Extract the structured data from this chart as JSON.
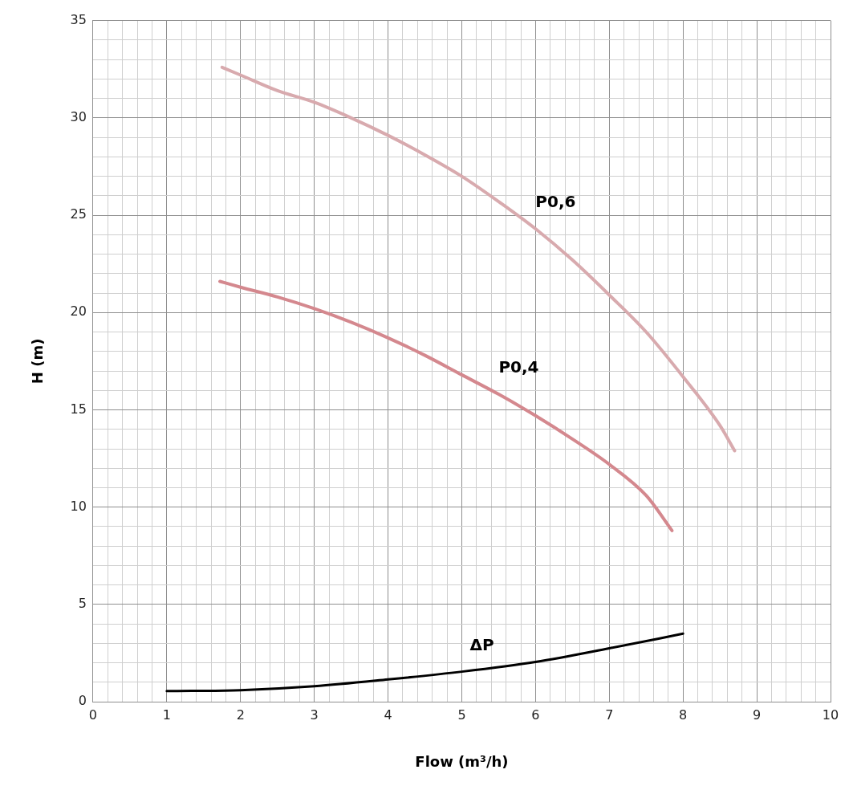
{
  "chart_data": {
    "type": "line",
    "xlabel": "Flow (m³/h)",
    "ylabel": "H (m)",
    "xlim": [
      0,
      10
    ],
    "ylim": [
      0,
      35
    ],
    "xticks": [
      0,
      {
        "value": 0.2,
        "label": null
      },
      {
        "value": 0.4,
        "label": null
      },
      {
        "value": 0.6,
        "label": null
      },
      {
        "value": 0.8,
        "label": null
      },
      1,
      {
        "value": 1.2,
        "label": null
      },
      {
        "value": 1.4,
        "label": null
      },
      {
        "value": 1.6,
        "label": null
      },
      {
        "value": 1.8,
        "label": null
      },
      2,
      {
        "value": 2.2,
        "label": null
      },
      {
        "value": 2.4,
        "label": null
      },
      {
        "value": 2.6,
        "label": null
      },
      {
        "value": 2.8,
        "label": null
      },
      3,
      {
        "value": 3.2,
        "label": null
      },
      {
        "value": 3.4,
        "label": null
      },
      {
        "value": 3.6,
        "label": null
      },
      {
        "value": 3.8,
        "label": null
      },
      4,
      {
        "value": 4.2,
        "label": null
      },
      {
        "value": 4.4,
        "label": null
      },
      {
        "value": 4.6,
        "label": null
      },
      {
        "value": 4.8,
        "label": null
      },
      5,
      {
        "value": 5.2,
        "label": null
      },
      {
        "value": 5.4,
        "label": null
      },
      {
        "value": 5.6,
        "label": null
      },
      {
        "value": 5.8,
        "label": null
      },
      6,
      {
        "value": 6.2,
        "label": null
      },
      {
        "value": 6.4,
        "label": null
      },
      {
        "value": 6.6,
        "label": null
      },
      {
        "value": 6.8,
        "label": null
      },
      7,
      {
        "value": 7.2,
        "label": null
      },
      {
        "value": 7.4,
        "label": null
      },
      {
        "value": 7.6,
        "label": null
      },
      {
        "value": 7.8,
        "label": null
      },
      8,
      {
        "value": 8.2,
        "label": null
      },
      {
        "value": 8.4,
        "label": null
      },
      {
        "value": 8.6,
        "label": null
      },
      {
        "value": 8.8,
        "label": null
      },
      9,
      {
        "value": 9.2,
        "label": null
      },
      {
        "value": 9.4,
        "label": null
      },
      {
        "value": 9.6,
        "label": null
      },
      {
        "value": 9.8,
        "label": null
      },
      10
    ],
    "yticks": [
      0,
      {
        "value": 1,
        "label": null
      },
      {
        "value": 2,
        "label": null
      },
      {
        "value": 3,
        "label": null
      },
      {
        "value": 4,
        "label": null
      },
      5,
      {
        "value": 6,
        "label": null
      },
      {
        "value": 7,
        "label": null
      },
      {
        "value": 8,
        "label": null
      },
      {
        "value": 9,
        "label": null
      },
      10,
      {
        "value": 11,
        "label": null
      },
      {
        "value": 12,
        "label": null
      },
      {
        "value": 13,
        "label": null
      },
      {
        "value": 14,
        "label": null
      },
      15,
      {
        "value": 16,
        "label": null
      },
      {
        "value": 17,
        "label": null
      },
      {
        "value": 18,
        "label": null
      },
      {
        "value": 19,
        "label": null
      },
      20,
      {
        "value": 21,
        "label": null
      },
      {
        "value": 22,
        "label": null
      },
      {
        "value": 23,
        "label": null
      },
      {
        "value": 24,
        "label": null
      },
      25,
      {
        "value": 26,
        "label": null
      },
      {
        "value": 27,
        "label": null
      },
      {
        "value": 28,
        "label": null
      },
      {
        "value": 29,
        "label": null
      },
      30,
      {
        "value": 31,
        "label": null
      },
      {
        "value": 32,
        "label": null
      },
      {
        "value": 33,
        "label": null
      },
      {
        "value": 34,
        "label": null
      },
      35
    ],
    "grid": true,
    "marker": "none",
    "line_style": "solid",
    "series": [
      {
        "name": "P0,6",
        "color": "#d8aaae",
        "x": [
          1.75,
          2,
          2.5,
          3,
          3.5,
          4,
          4.5,
          5,
          5.5,
          6,
          6.5,
          7,
          7.5,
          8,
          8.5,
          8.7
        ],
        "values": [
          32.6,
          32.2,
          31.4,
          30.8,
          30.0,
          29.1,
          28.1,
          27.0,
          25.7,
          24.3,
          22.7,
          20.9,
          19.0,
          16.7,
          14.2,
          12.9
        ]
      },
      {
        "name": "P0,4",
        "color": "#d4888e",
        "x": [
          1.72,
          2,
          2.5,
          3,
          3.5,
          4,
          4.5,
          5,
          5.5,
          6,
          6.5,
          7,
          7.5,
          7.85
        ],
        "values": [
          21.6,
          21.3,
          20.8,
          20.2,
          19.5,
          18.7,
          17.8,
          16.8,
          15.8,
          14.7,
          13.5,
          12.2,
          10.6,
          8.8
        ]
      },
      {
        "name": "ΔP",
        "color": "#000000",
        "x": [
          1,
          2,
          3,
          4,
          5,
          6,
          7,
          8
        ],
        "values": [
          0.55,
          0.6,
          0.8,
          1.15,
          1.55,
          2.05,
          2.75,
          3.5
        ]
      }
    ]
  }
}
